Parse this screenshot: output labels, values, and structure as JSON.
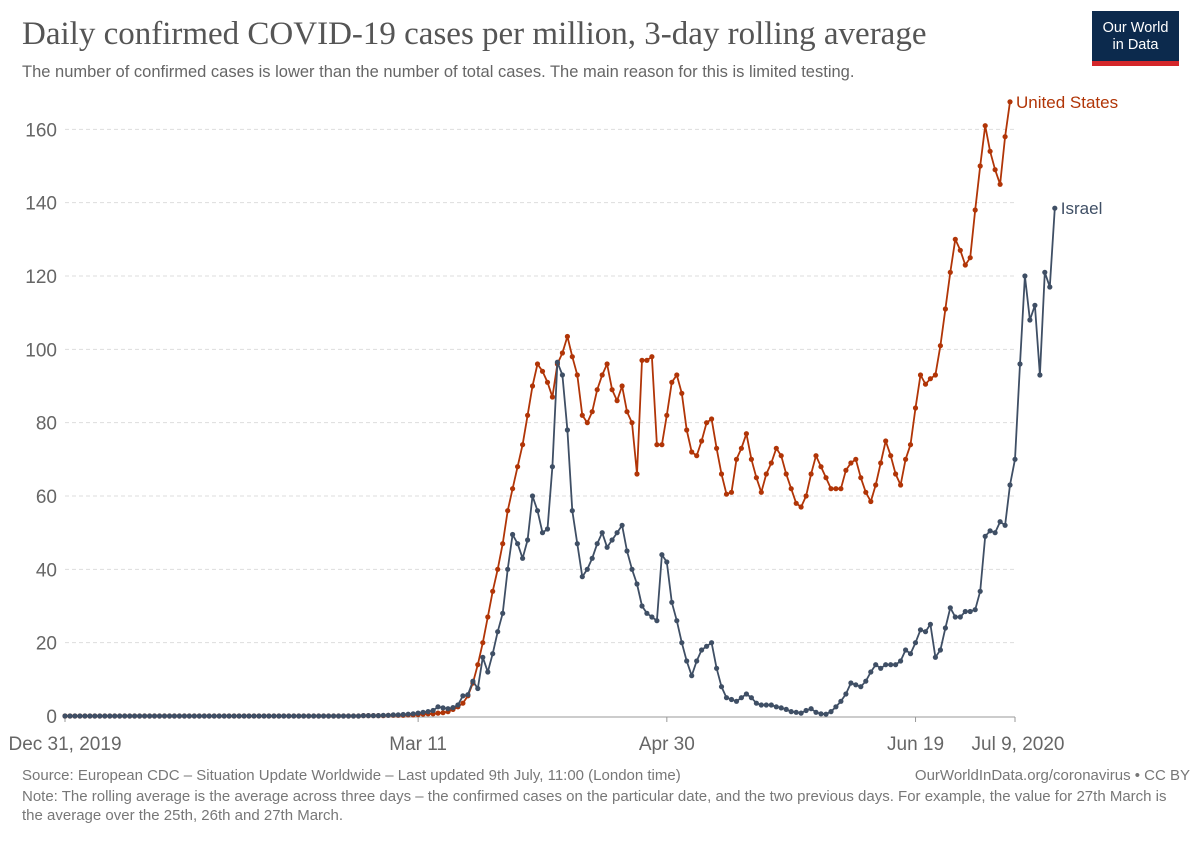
{
  "header": {
    "title": "Daily confirmed COVID-19 cases per million, 3-day rolling average",
    "subtitle": "The number of confirmed cases is lower than the number of total cases. The main reason for this is limited testing."
  },
  "logo": {
    "line1": "Our World",
    "line2": "in Data",
    "bg_color": "#0c2a4d",
    "bar_color": "#d4262a"
  },
  "footer": {
    "source": "Source: European CDC – Situation Update Worldwide – Last updated 9th July, 11:00 (London time)",
    "url": "OurWorldInData.org/coronavirus • CC BY",
    "note": "Note: The rolling average is the average across three days – the confirmed cases on the particular date, and the two previous days. For example, the value for 27th March is the average over the 25th, 26th and 27th March."
  },
  "chart_data": {
    "type": "line",
    "title": "Daily confirmed COVID-19 cases per million, 3-day rolling average",
    "xlabel": "",
    "ylabel": "",
    "x_start": "Dec 31, 2019",
    "x_end": "Jul 9, 2020",
    "x_range_days": [
      0,
      191
    ],
    "ylim": [
      0,
      168
    ],
    "yticks": [
      0,
      20,
      40,
      60,
      80,
      100,
      120,
      140,
      160
    ],
    "xticks": [
      {
        "day": 0,
        "label": "Dec 31, 2019"
      },
      {
        "day": 71,
        "label": "Mar 11"
      },
      {
        "day": 121,
        "label": "Apr 30"
      },
      {
        "day": 171,
        "label": "Jun 19"
      },
      {
        "day": 191,
        "label": "Jul 9, 2020"
      }
    ],
    "grid": true,
    "series": [
      {
        "name": "United States",
        "label": "United States",
        "color": "#b13507",
        "start_day": 0,
        "values": [
          0,
          0,
          0,
          0,
          0,
          0,
          0,
          0,
          0,
          0,
          0,
          0,
          0,
          0,
          0,
          0,
          0,
          0,
          0,
          0,
          0,
          0,
          0,
          0,
          0,
          0,
          0,
          0,
          0,
          0,
          0,
          0,
          0,
          0,
          0,
          0,
          0,
          0,
          0,
          0,
          0,
          0,
          0,
          0,
          0,
          0,
          0,
          0,
          0,
          0,
          0,
          0,
          0,
          0,
          0,
          0,
          0,
          0,
          0,
          0,
          0.1,
          0.1,
          0.1,
          0.1,
          0.1,
          0.2,
          0.2,
          0.2,
          0.2,
          0.3,
          0.3,
          0.4,
          0.5,
          0.6,
          0.6,
          0.8,
          0.9,
          1.2,
          1.8,
          2.5,
          3.5,
          5.5,
          9,
          14,
          20,
          27,
          34,
          40,
          47,
          56,
          62,
          68,
          74,
          82,
          90,
          96,
          94,
          91,
          87,
          96,
          99,
          103.5,
          98,
          93,
          82,
          80,
          83,
          89,
          93,
          96,
          89,
          86,
          90,
          83,
          80,
          66,
          97,
          97,
          98,
          74,
          74,
          82,
          91,
          93,
          88,
          78,
          72,
          71,
          75,
          80,
          81,
          73,
          66,
          60.5,
          61,
          70,
          73,
          77,
          70,
          65,
          61,
          66,
          69,
          73,
          71,
          66,
          62,
          58,
          57,
          60,
          66,
          71,
          68,
          65,
          62,
          62,
          62,
          67,
          69,
          70,
          65,
          61,
          58.5,
          63,
          69,
          75,
          71,
          66,
          63,
          70,
          74,
          84,
          93,
          90.5,
          92,
          93,
          101,
          111,
          121,
          130,
          127,
          123,
          125,
          138,
          150,
          161,
          154,
          149,
          145,
          158,
          167.5
        ]
      },
      {
        "name": "Israel",
        "label": "Israel",
        "color": "#3f4f65",
        "start_day": 0,
        "values": [
          0,
          0,
          0,
          0,
          0,
          0,
          0,
          0,
          0,
          0,
          0,
          0,
          0,
          0,
          0,
          0,
          0,
          0,
          0,
          0,
          0,
          0,
          0,
          0,
          0,
          0,
          0,
          0,
          0,
          0,
          0,
          0,
          0,
          0,
          0,
          0,
          0,
          0,
          0,
          0,
          0,
          0,
          0,
          0,
          0,
          0,
          0,
          0,
          0,
          0,
          0,
          0,
          0,
          0,
          0,
          0,
          0,
          0,
          0,
          0,
          0.1,
          0.1,
          0.1,
          0.1,
          0.2,
          0.2,
          0.3,
          0.3,
          0.4,
          0.5,
          0.6,
          0.8,
          1,
          1.2,
          1.5,
          2.5,
          2.2,
          2,
          2.3,
          3,
          5.5,
          5.8,
          9.5,
          7.5,
          16,
          12,
          17,
          23,
          28,
          40,
          49.5,
          47,
          43,
          48,
          60,
          56,
          50,
          51,
          68,
          96.5,
          93,
          78,
          56,
          47,
          38,
          40,
          43,
          47,
          50,
          46,
          48,
          50,
          52,
          45,
          40,
          36,
          30,
          28,
          27,
          26,
          44,
          42,
          31,
          26,
          20,
          15,
          11,
          15,
          18,
          19,
          20,
          13,
          8,
          5,
          4.5,
          4,
          5,
          6,
          5,
          3.5,
          3,
          3,
          3,
          2.5,
          2.2,
          1.8,
          1.2,
          1,
          0.8,
          1.5,
          2,
          1,
          0.6,
          0.5,
          1.2,
          2.5,
          4,
          6,
          9,
          8.5,
          8,
          9.5,
          12,
          14,
          13,
          14,
          14,
          14,
          15,
          18,
          17,
          20,
          23.5,
          23,
          25,
          16,
          18,
          24,
          29.5,
          27,
          27,
          28.5,
          28.5,
          29,
          34,
          49,
          50.5,
          50,
          53,
          52,
          63,
          70,
          96,
          120,
          108,
          112,
          93,
          121,
          117,
          138.5
        ]
      }
    ]
  }
}
